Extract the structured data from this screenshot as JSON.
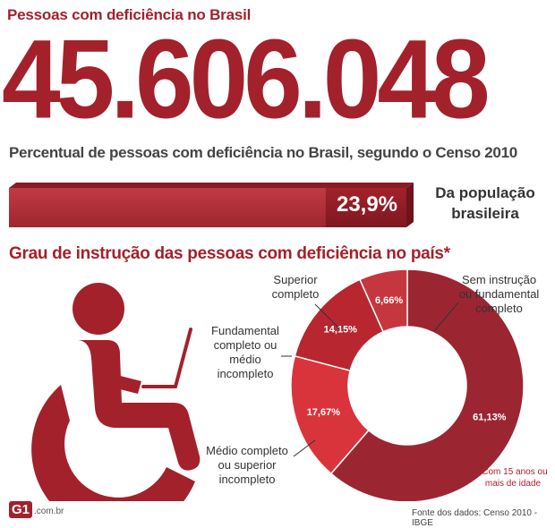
{
  "header": {
    "title": "Pessoas com deficiência no Brasil",
    "big_number": "45.606.048",
    "subtitle": "Percentual de pessoas com deficiência no Brasil, segundo o Censo 2010"
  },
  "percentage": {
    "value_text": "23,9%",
    "value": 23.9,
    "label_line1": "Da população",
    "label_line2": "brasileira"
  },
  "section_title": "Grau de instrução das pessoas com deficiência no país*",
  "annotations": {
    "superior_line1": "Superior",
    "superior_line2": "completo",
    "sem_line1": "Sem instrução",
    "sem_line2": "ou fundamental",
    "sem_line3": "completo",
    "fund_line1": "Fundamental",
    "fund_line2": "completo ou",
    "fund_line3": "médio",
    "fund_line4": "incompleto",
    "medio_line1": "Médio completo",
    "medio_line2": "ou superior",
    "medio_line3": "incompleto"
  },
  "footnote_line1": "*Com 15 anos ou",
  "footnote_line2": "mais de idade",
  "source": "Fonte dos dados: Censo 2010 - IBGE",
  "logo": {
    "badge": "G1",
    "domain": ".com.br"
  },
  "colors": {
    "brand": "#a3212b",
    "bar_light": "#b8323c",
    "bar_dark": "#8e1c25",
    "slice_sem": "#9b2631",
    "slice_medio": "#d9343c",
    "slice_fund": "#b8262f",
    "slice_sup": "#c6363f"
  },
  "icons": [
    "wheelchair-user-icon"
  ],
  "chart_data": {
    "type": "pie",
    "title": "Grau de instrução das pessoas com deficiência no país*",
    "categories": [
      "Sem instrução ou fundamental completo",
      "Médio completo ou superior incompleto",
      "Fundamental completo ou médio incompleto",
      "Superior completo"
    ],
    "values": [
      61.13,
      17.67,
      14.15,
      6.66
    ],
    "labels": [
      "61,13%",
      "17,67%",
      "14,15%",
      "6,66%"
    ]
  }
}
